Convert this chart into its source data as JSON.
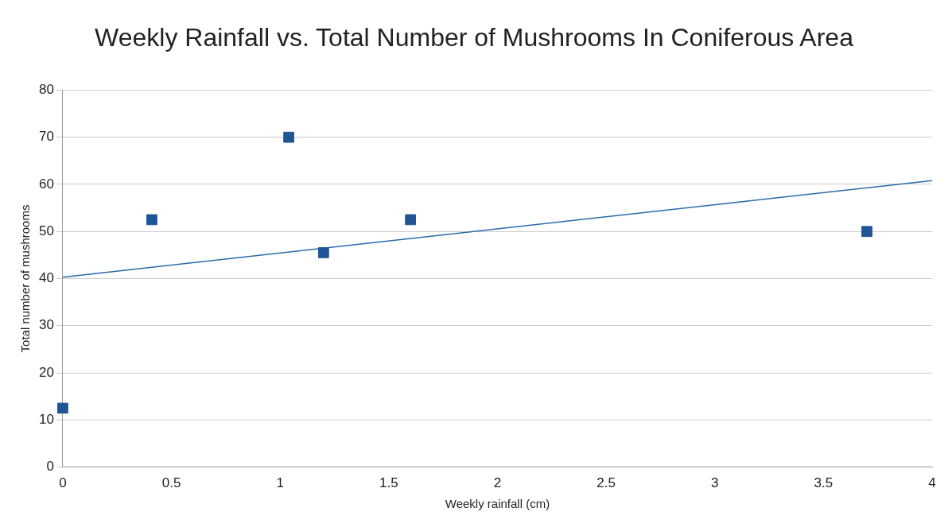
{
  "chart_data": {
    "type": "scatter",
    "title": "Weekly Rainfall vs. Total Number of Mushrooms In Coniferous Area",
    "xlabel": "Weekly rainfall (cm)",
    "ylabel": "Total number of mushrooms",
    "xlim": [
      0,
      4
    ],
    "ylim": [
      0,
      80
    ],
    "xticks": [
      0,
      0.5,
      1,
      1.5,
      2,
      2.5,
      3,
      3.5,
      4
    ],
    "yticks": [
      0,
      10,
      20,
      30,
      40,
      50,
      60,
      70,
      80
    ],
    "grid": "y",
    "series": [
      {
        "type": "scatter",
        "marker": "square",
        "color": "#1f5597",
        "x": [
          0,
          0.41,
          1.04,
          1.2,
          1.6,
          3.7
        ],
        "values": [
          12.5,
          52.5,
          70,
          45.5,
          52.5,
          50
        ]
      },
      {
        "type": "line",
        "color": "#2a6aa8",
        "x": [
          0,
          4
        ],
        "values": [
          40.3,
          60.8
        ]
      }
    ]
  }
}
